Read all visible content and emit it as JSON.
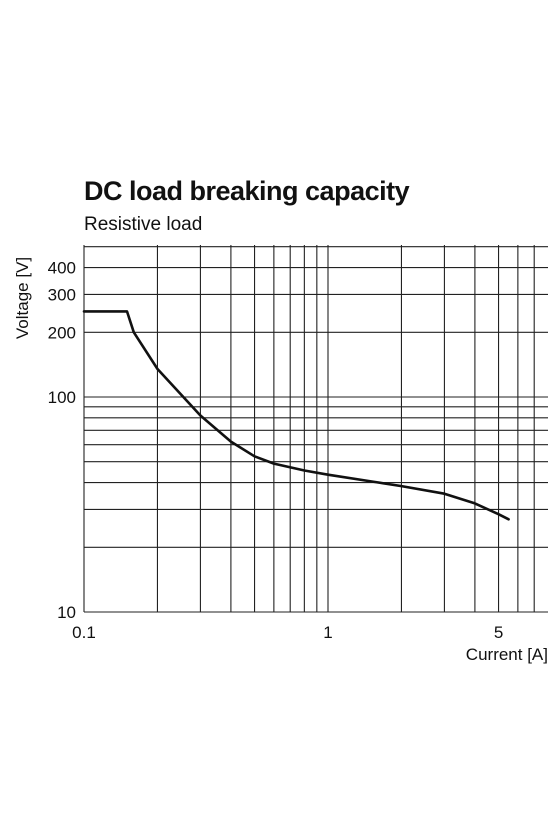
{
  "chart_data": {
    "type": "line",
    "title": "DC load breaking capacity",
    "subtitle": "Resistive load",
    "xlabel": "Current [A]",
    "ylabel": "Voltage [V]",
    "xscale": "log",
    "yscale": "log",
    "xlim": [
      0.1,
      7
    ],
    "ylim": [
      10,
      500
    ],
    "grid": true,
    "x_ticks": [
      {
        "value": 0.1,
        "label": "0.1"
      },
      {
        "value": 1,
        "label": "1"
      },
      {
        "value": 5,
        "label": "5"
      }
    ],
    "y_ticks": [
      {
        "value": 10,
        "label": "10"
      },
      {
        "value": 100,
        "label": "100"
      },
      {
        "value": 200,
        "label": "200"
      },
      {
        "value": 300,
        "label": "300"
      },
      {
        "value": 400,
        "label": "400"
      }
    ],
    "x_gridlines": [
      0.1,
      0.2,
      0.3,
      0.4,
      0.5,
      0.6,
      0.7,
      0.8,
      0.9,
      1,
      2,
      3,
      4,
      5,
      6,
      7
    ],
    "y_gridlines": [
      10,
      20,
      30,
      40,
      50,
      60,
      70,
      80,
      90,
      100,
      200,
      300,
      400,
      500
    ],
    "series": [
      {
        "x": [
          0.1,
          0.15,
          0.16,
          0.2,
          0.3,
          0.4,
          0.5,
          0.6,
          0.8,
          1.0,
          1.5,
          2.0,
          3.0,
          4.0,
          5.0,
          5.5
        ],
        "y": [
          250,
          250,
          200,
          135,
          82,
          62,
          53,
          49,
          45.5,
          43.5,
          40.5,
          38.5,
          35.5,
          32,
          28.5,
          27
        ]
      }
    ]
  }
}
